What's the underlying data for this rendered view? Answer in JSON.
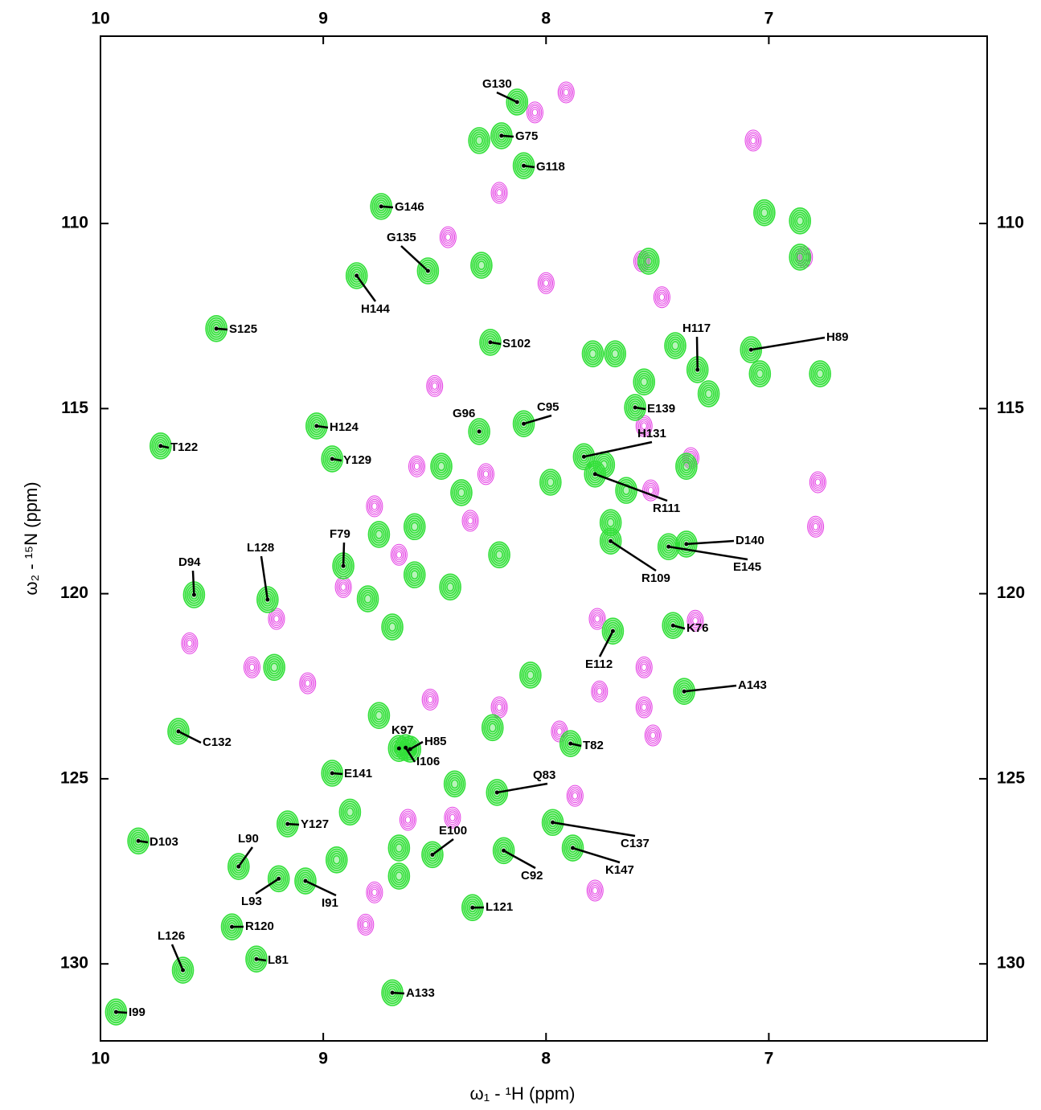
{
  "chart_data": {
    "type": "scatter",
    "x_label": "ω₁ - ¹H  (ppm)",
    "y_label": "ω₂ - ¹⁵N  (ppm)",
    "xlim": [
      10,
      6.02
    ],
    "ylim": [
      104.94,
      132.08
    ],
    "xticks": [
      10,
      9,
      8,
      7
    ],
    "yticks": [
      110,
      115,
      120,
      125,
      130
    ],
    "series": [
      {
        "color": "#33e03a",
        "labels": [
          "G130",
          "G75",
          "G118",
          "G146",
          "G135",
          "H144",
          "S125",
          "S102",
          "H117",
          "H89",
          "E139",
          "C95",
          "G96",
          "H124",
          "T122",
          "H131",
          "Y129",
          "R111",
          "D140",
          "E145",
          "R109",
          "F79",
          "L128",
          "D94",
          "E112",
          "K76",
          "A143",
          "C132",
          "T82",
          "K97",
          "H85",
          "I106",
          "E141",
          "Q83",
          "Y127",
          "D103",
          "C137",
          "E100",
          "C92",
          "K147",
          "L90",
          "L93",
          "I91",
          "L121",
          "R120",
          "L81",
          "L126",
          "A133",
          "I99"
        ],
        "x": [
          8.13,
          8.2,
          8.1,
          8.74,
          8.53,
          8.85,
          9.48,
          8.25,
          7.32,
          7.08,
          7.6,
          8.1,
          8.3,
          9.03,
          9.73,
          7.83,
          8.96,
          7.78,
          7.37,
          7.45,
          7.71,
          8.91,
          9.25,
          9.58,
          7.7,
          7.43,
          7.38,
          9.65,
          7.89,
          8.66,
          8.61,
          8.63,
          8.96,
          8.22,
          9.16,
          9.83,
          7.97,
          8.51,
          8.19,
          7.88,
          9.38,
          9.2,
          9.08,
          8.33,
          9.41,
          9.3,
          9.63,
          8.69,
          9.93
        ],
        "y": [
          106.72,
          107.63,
          108.44,
          109.54,
          111.28,
          111.41,
          112.84,
          113.21,
          113.95,
          113.41,
          114.97,
          115.41,
          115.62,
          115.47,
          116.01,
          116.3,
          116.36,
          116.77,
          118.66,
          118.73,
          118.58,
          119.25,
          120.16,
          120.03,
          121.01,
          120.86,
          122.64,
          123.72,
          124.05,
          124.18,
          124.2,
          124.16,
          124.85,
          125.37,
          126.22,
          126.68,
          126.18,
          127.05,
          126.94,
          126.87,
          127.37,
          127.7,
          127.76,
          128.48,
          129.0,
          129.87,
          130.17,
          130.78,
          131.3
        ]
      },
      {
        "color": "#33e03a",
        "x": [
          8.3,
          7.02,
          6.86,
          7.54,
          6.86,
          8.29,
          7.79,
          7.69,
          7.56,
          7.27,
          7.04,
          6.77,
          7.42,
          8.47,
          8.38,
          7.98,
          7.74,
          7.64,
          7.37,
          8.59,
          8.75,
          8.59,
          8.43,
          8.21,
          7.71,
          8.8,
          8.69,
          9.22,
          8.75,
          8.24,
          8.41,
          8.88,
          8.66,
          8.66,
          8.94,
          8.07
        ],
        "y": [
          107.76,
          109.71,
          109.93,
          111.02,
          110.91,
          111.13,
          113.52,
          113.52,
          114.28,
          114.6,
          114.06,
          114.06,
          113.3,
          116.56,
          117.27,
          116.99,
          116.52,
          117.21,
          116.56,
          118.19,
          118.4,
          119.49,
          119.82,
          118.95,
          118.08,
          120.14,
          120.9,
          121.99,
          123.29,
          123.62,
          125.14,
          125.9,
          126.87,
          127.63,
          127.19,
          122.2
        ]
      },
      {
        "color": "#e43ce4",
        "x": [
          7.91,
          8.05,
          7.07,
          8.21,
          8.44,
          8.0,
          7.57,
          7.48,
          6.84,
          8.5,
          8.58,
          8.27,
          6.78,
          7.35,
          7.56,
          8.77,
          8.34,
          9.07,
          9.32,
          9.6,
          9.21,
          8.91,
          8.66,
          7.56,
          7.77,
          7.33,
          7.76,
          7.56,
          7.52,
          7.94,
          8.52,
          8.21,
          8.62,
          8.42,
          7.87,
          8.81,
          7.78,
          8.77,
          6.79,
          7.53
        ],
        "y": [
          106.46,
          107.0,
          107.76,
          109.17,
          110.37,
          111.61,
          111.02,
          111.99,
          110.91,
          114.39,
          116.56,
          116.77,
          116.99,
          116.34,
          115.47,
          117.64,
          118.03,
          122.42,
          121.99,
          121.34,
          120.68,
          119.82,
          118.95,
          121.99,
          120.68,
          120.73,
          122.64,
          123.07,
          123.83,
          123.72,
          122.86,
          123.07,
          126.11,
          126.05,
          125.46,
          128.94,
          128.02,
          128.07,
          118.19,
          117.21
        ]
      }
    ]
  }
}
